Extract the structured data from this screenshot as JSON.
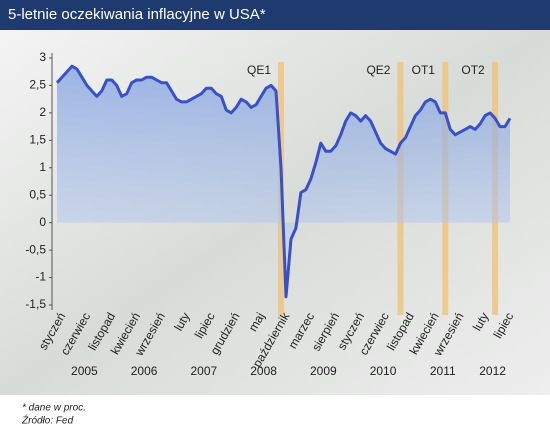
{
  "chart_data": {
    "type": "line",
    "title": "5-letnie oczekiwania inflacyjne w USA*",
    "footnote": "* dane w proc.",
    "source": "Źródło: Fed",
    "categories": [
      "styczeń",
      null,
      null,
      null,
      null,
      "czerwiec",
      null,
      null,
      null,
      null,
      "listopad",
      null,
      null,
      null,
      null,
      "kwiecień",
      null,
      null,
      null,
      null,
      "wrzesień",
      null,
      null,
      null,
      null,
      "luty",
      null,
      null,
      null,
      null,
      "lipiec",
      null,
      null,
      null,
      null,
      "grudzień",
      null,
      null,
      null,
      null,
      "maj",
      null,
      null,
      null,
      null,
      "październik",
      null,
      null,
      null,
      null,
      "marzec",
      null,
      null,
      null,
      null,
      "sierpień",
      null,
      null,
      null,
      null,
      "styczeń",
      null,
      null,
      null,
      null,
      "czerwiec",
      null,
      null,
      null,
      null,
      "listopad",
      null,
      null,
      null,
      null,
      "kwiecień",
      null,
      null,
      null,
      null,
      "wrzesień",
      null,
      null,
      null,
      null,
      "luty",
      null,
      null,
      null,
      null,
      "lipiec",
      null
    ],
    "years": [
      "2005",
      "2006",
      "2007",
      "2008",
      "2009",
      "2010",
      "2011",
      "2012"
    ],
    "values": [
      2.55,
      2.65,
      2.75,
      2.85,
      2.8,
      2.65,
      2.5,
      2.4,
      2.3,
      2.4,
      2.6,
      2.6,
      2.5,
      2.3,
      2.35,
      2.55,
      2.6,
      2.6,
      2.65,
      2.65,
      2.6,
      2.55,
      2.55,
      2.4,
      2.25,
      2.2,
      2.2,
      2.25,
      2.3,
      2.35,
      2.45,
      2.45,
      2.35,
      2.3,
      2.05,
      2.0,
      2.1,
      2.25,
      2.2,
      2.1,
      2.15,
      2.3,
      2.45,
      2.5,
      2.4,
      1.0,
      -1.35,
      -0.3,
      -0.1,
      0.55,
      0.6,
      0.8,
      1.1,
      1.45,
      1.3,
      1.3,
      1.4,
      1.6,
      1.85,
      2.0,
      1.95,
      1.85,
      1.95,
      1.85,
      1.65,
      1.45,
      1.35,
      1.3,
      1.25,
      1.45,
      1.55,
      1.75,
      1.95,
      2.05,
      2.2,
      2.25,
      2.2,
      2.0,
      2.0,
      1.7,
      1.6,
      1.65,
      1.7,
      1.75,
      1.7,
      1.8,
      1.95,
      2.0,
      1.9,
      1.75,
      1.75,
      1.9
    ],
    "color": "#3a50c8",
    "annotations": [
      {
        "label": "QE1",
        "x": 45
      },
      {
        "label": "QE2",
        "x": 69
      },
      {
        "label": "OT1",
        "x": 78
      },
      {
        "label": "OT2",
        "x": 88
      }
    ],
    "ylim": [
      -1.5,
      3
    ],
    "yticks": [
      {
        "value": -1.5,
        "label": "-1,5"
      },
      -1,
      {
        "value": -0.5,
        "label": "-0,5"
      },
      0,
      {
        "value": 0.5,
        "label": "0,5"
      },
      1,
      {
        "value": 1.5,
        "label": "1,5"
      },
      2,
      {
        "value": 2.5,
        "label": "2,5"
      },
      3
    ]
  }
}
